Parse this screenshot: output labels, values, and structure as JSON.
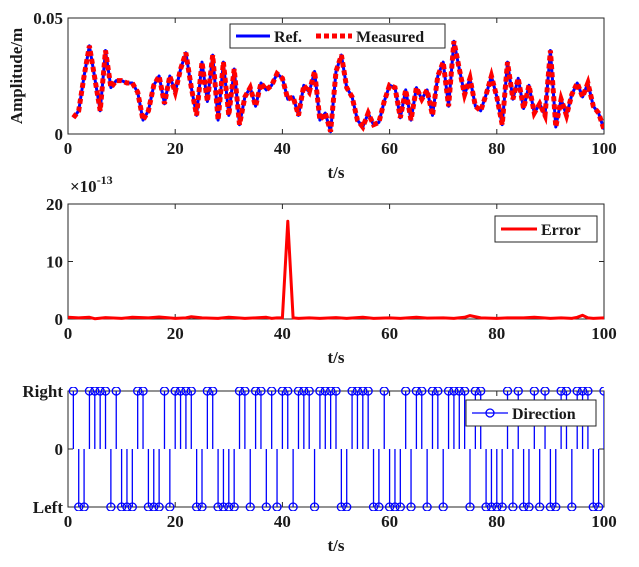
{
  "chart_data": [
    {
      "type": "line",
      "title": "",
      "xlabel": "t/s",
      "ylabel": "Amplitude/m",
      "xlim": [
        0,
        100
      ],
      "ylim": [
        0,
        0.05
      ],
      "xticks": [
        "0",
        "20",
        "40",
        "60",
        "80",
        "100"
      ],
      "yticks": [
        {
          "value": 0,
          "label": "0"
        },
        {
          "value": 0.05,
          "label": "0.05"
        }
      ],
      "legend": {
        "position": "top-center",
        "entries": [
          "Ref.",
          "Measured"
        ]
      },
      "series": [
        {
          "name": "Ref.",
          "color": "#0000ff",
          "x": [
            1,
            2,
            3,
            4,
            5,
            6,
            7,
            8,
            9,
            10,
            11,
            12,
            13,
            14,
            15,
            16,
            17,
            18,
            19,
            20,
            21,
            22,
            23,
            24,
            25,
            26,
            27,
            28,
            29,
            30,
            31,
            32,
            33,
            34,
            35,
            36,
            37,
            38,
            39,
            40,
            41,
            42,
            43,
            44,
            45,
            46,
            47,
            48,
            49,
            50,
            51,
            52,
            53,
            54,
            55,
            56,
            57,
            58,
            59,
            60,
            61,
            62,
            63,
            64,
            65,
            66,
            67,
            68,
            69,
            70,
            71,
            72,
            73,
            74,
            75,
            76,
            77,
            78,
            79,
            80,
            81,
            82,
            83,
            84,
            85,
            86,
            87,
            88,
            89,
            90,
            91,
            92,
            93,
            94,
            95,
            96,
            97,
            98,
            99,
            100
          ],
          "y": [
            0.007,
            0.01,
            0.025,
            0.038,
            0.024,
            0.01,
            0.036,
            0.02,
            0.023,
            0.023,
            0.022,
            0.022,
            0.018,
            0.006,
            0.01,
            0.021,
            0.025,
            0.013,
            0.025,
            0.018,
            0.028,
            0.035,
            0.02,
            0.008,
            0.031,
            0.014,
            0.034,
            0.006,
            0.031,
            0.008,
            0.028,
            0.004,
            0.016,
            0.02,
            0.012,
            0.022,
            0.019,
            0.021,
            0.026,
            0.024,
            0.015,
            0.016,
            0.008,
            0.021,
            0.018,
            0.027,
            0.006,
            0.009,
            0.001,
            0.027,
            0.034,
            0.02,
            0.016,
            0.006,
            0.003,
            0.009,
            0.004,
            0.005,
            0.014,
            0.021,
            0.02,
            0.007,
            0.019,
            0.006,
            0.02,
            0.015,
            0.019,
            0.008,
            0.025,
            0.031,
            0.012,
            0.04,
            0.028,
            0.017,
            0.024,
            0.012,
            0.01,
            0.017,
            0.025,
            0.016,
            0.004,
            0.031,
            0.015,
            0.024,
            0.011,
            0.021,
            0.009,
            0.013,
            0.008,
            0.036,
            0.003,
            0.015,
            0.008,
            0.017,
            0.022,
            0.016,
            0.022,
            0.012,
            0.009,
            0.002
          ]
        },
        {
          "name": "Measured",
          "color": "#ff0000",
          "x": [
            1,
            2,
            3,
            4,
            5,
            6,
            7,
            8,
            9,
            10,
            11,
            12,
            13,
            14,
            15,
            16,
            17,
            18,
            19,
            20,
            21,
            22,
            23,
            24,
            25,
            26,
            27,
            28,
            29,
            30,
            31,
            32,
            33,
            34,
            35,
            36,
            37,
            38,
            39,
            40,
            41,
            42,
            43,
            44,
            45,
            46,
            47,
            48,
            49,
            50,
            51,
            52,
            53,
            54,
            55,
            56,
            57,
            58,
            59,
            60,
            61,
            62,
            63,
            64,
            65,
            66,
            67,
            68,
            69,
            70,
            71,
            72,
            73,
            74,
            75,
            76,
            77,
            78,
            79,
            80,
            81,
            82,
            83,
            84,
            85,
            86,
            87,
            88,
            89,
            90,
            91,
            92,
            93,
            94,
            95,
            96,
            97,
            98,
            99,
            100
          ],
          "y": [
            0.007,
            0.01,
            0.025,
            0.038,
            0.024,
            0.01,
            0.036,
            0.02,
            0.023,
            0.023,
            0.022,
            0.022,
            0.018,
            0.006,
            0.01,
            0.021,
            0.025,
            0.013,
            0.025,
            0.018,
            0.028,
            0.035,
            0.02,
            0.008,
            0.031,
            0.014,
            0.034,
            0.006,
            0.031,
            0.008,
            0.028,
            0.004,
            0.016,
            0.02,
            0.012,
            0.022,
            0.019,
            0.021,
            0.026,
            0.024,
            0.015,
            0.016,
            0.008,
            0.021,
            0.018,
            0.027,
            0.006,
            0.009,
            0.001,
            0.027,
            0.034,
            0.02,
            0.016,
            0.006,
            0.003,
            0.009,
            0.004,
            0.005,
            0.014,
            0.021,
            0.02,
            0.007,
            0.019,
            0.006,
            0.02,
            0.015,
            0.019,
            0.008,
            0.025,
            0.031,
            0.012,
            0.04,
            0.028,
            0.017,
            0.024,
            0.012,
            0.01,
            0.017,
            0.025,
            0.016,
            0.004,
            0.031,
            0.015,
            0.024,
            0.011,
            0.021,
            0.009,
            0.013,
            0.008,
            0.036,
            0.003,
            0.015,
            0.008,
            0.017,
            0.022,
            0.016,
            0.022,
            0.012,
            0.009,
            0.002
          ]
        }
      ]
    },
    {
      "type": "line",
      "title": "",
      "xlabel": "t/s",
      "ylabel": "",
      "xlim": [
        0,
        100
      ],
      "ylim": [
        0,
        20
      ],
      "scale_exponent": {
        "base": "×10",
        "power": "-13"
      },
      "xticks": [
        "0",
        "20",
        "40",
        "60",
        "80",
        "100"
      ],
      "yticks": [
        {
          "value": 0,
          "label": "0"
        },
        {
          "value": 10,
          "label": "10"
        },
        {
          "value": 20,
          "label": "20"
        }
      ],
      "legend": {
        "position": "top-right",
        "entries": [
          "Error"
        ]
      },
      "series": [
        {
          "name": "Error",
          "color": "#ff0000",
          "x": [
            0,
            2,
            4,
            5,
            7,
            10,
            12,
            15,
            17,
            20,
            22,
            23,
            25,
            28,
            30,
            33,
            35,
            37,
            38,
            39,
            40,
            41,
            42,
            43,
            45,
            47,
            50,
            52,
            55,
            57,
            60,
            62,
            65,
            67,
            70,
            72,
            74,
            75,
            77,
            80,
            82,
            85,
            87,
            90,
            92,
            94,
            95,
            96,
            97,
            98,
            100
          ],
          "y": [
            0.3,
            0.2,
            0.3,
            0.05,
            0.25,
            0.1,
            0.3,
            0.2,
            0.35,
            0.1,
            0.2,
            0.4,
            0.2,
            0.1,
            0.3,
            0.1,
            0.2,
            0.3,
            0.1,
            0.2,
            0.2,
            17,
            0.2,
            0.1,
            0.2,
            0.1,
            0.25,
            0.1,
            0.3,
            0.1,
            0.2,
            0.1,
            0.3,
            0.15,
            0.2,
            0.1,
            0.3,
            0.6,
            0.2,
            0.1,
            0.2,
            0.2,
            0.3,
            0.1,
            0.2,
            0.1,
            0.3,
            0.65,
            0.2,
            0.1,
            0.2
          ]
        }
      ]
    },
    {
      "type": "stem",
      "title": "",
      "xlabel": "t/s",
      "ylabel": "",
      "xlim": [
        0,
        100
      ],
      "ylim": [
        -1,
        1
      ],
      "xticks": [
        "0",
        "20",
        "40",
        "60",
        "80",
        "100"
      ],
      "yticks": [
        {
          "value": 1,
          "label": "Right"
        },
        {
          "value": 0,
          "label": "0"
        },
        {
          "value": -1,
          "label": "Left"
        }
      ],
      "legend": {
        "position": "top-right",
        "entries": [
          "Direction"
        ]
      },
      "series": [
        {
          "name": "Direction",
          "color": "#0000ff",
          "marker": "circle",
          "x": [
            1,
            2,
            3,
            4,
            5,
            6,
            7,
            8,
            9,
            10,
            11,
            12,
            13,
            14,
            15,
            16,
            17,
            18,
            19,
            20,
            21,
            22,
            23,
            24,
            25,
            26,
            27,
            28,
            29,
            30,
            31,
            32,
            33,
            34,
            35,
            36,
            37,
            38,
            39,
            40,
            41,
            42,
            43,
            44,
            45,
            46,
            47,
            48,
            49,
            50,
            51,
            52,
            53,
            54,
            55,
            56,
            57,
            58,
            59,
            60,
            61,
            62,
            63,
            64,
            65,
            66,
            67,
            68,
            69,
            70,
            71,
            72,
            73,
            74,
            75,
            76,
            77,
            78,
            79,
            80,
            81,
            82,
            83,
            84,
            85,
            86,
            87,
            88,
            89,
            90,
            91,
            92,
            93,
            94,
            95,
            96,
            97,
            98,
            99,
            100
          ],
          "y": [
            1,
            -1,
            -1,
            1,
            1,
            1,
            1,
            -1,
            1,
            -1,
            -1,
            -1,
            1,
            1,
            -1,
            -1,
            -1,
            1,
            -1,
            1,
            1,
            1,
            1,
            -1,
            -1,
            1,
            1,
            -1,
            -1,
            -1,
            -1,
            1,
            1,
            -1,
            1,
            1,
            -1,
            1,
            -1,
            1,
            1,
            -1,
            1,
            1,
            1,
            -1,
            1,
            1,
            1,
            1,
            -1,
            -1,
            1,
            1,
            1,
            1,
            -1,
            -1,
            1,
            -1,
            -1,
            -1,
            1,
            -1,
            1,
            1,
            -1,
            1,
            1,
            -1,
            1,
            1,
            1,
            1,
            -1,
            1,
            1,
            -1,
            -1,
            -1,
            -1,
            1,
            -1,
            1,
            -1,
            -1,
            1,
            -1,
            1,
            -1,
            -1,
            1,
            1,
            -1,
            1,
            1,
            1,
            -1,
            -1,
            1
          ]
        }
      ]
    }
  ]
}
